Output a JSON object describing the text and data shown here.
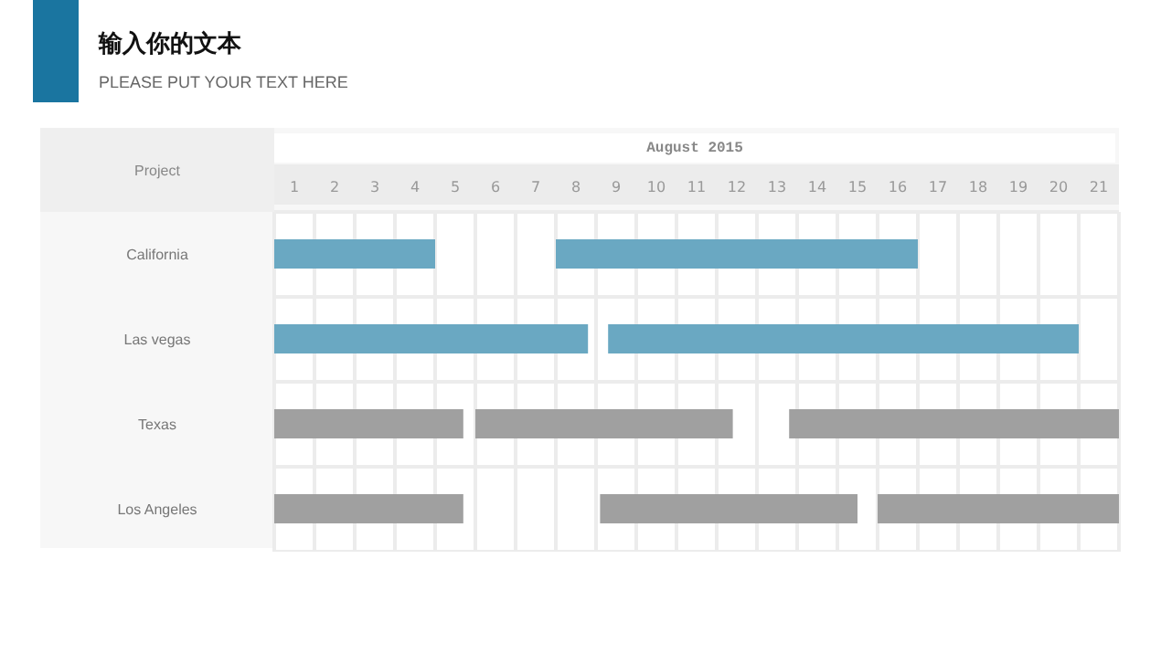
{
  "chart_data": {
    "type": "bar",
    "orientation": "horizontal",
    "title": "输入你的文本",
    "subtitle": "PLEASE PUT YOUR TEXT HERE",
    "xlabel": "August 2015",
    "ylabel": "Project",
    "categories": [
      "California",
      "Las vegas",
      "Texas",
      "Los Angeles"
    ],
    "series": [
      {
        "colors": [
          "#6aa8c2",
          "#6aa8c2",
          "#a0a0a0",
          "#a0a0a0"
        ],
        "base": [
          0,
          0,
          0,
          0
        ],
        "values": [
          4,
          7.8,
          4.7,
          4.7
        ]
      },
      {
        "colors": [
          "#6aa8c2",
          "#6aa8c2",
          "#a0a0a0",
          "#a0a0a0"
        ],
        "base": [
          7,
          8.3,
          5,
          8.1
        ],
        "values": [
          9,
          11.7,
          6.4,
          6.4
        ]
      },
      {
        "colors": [
          "#6aa8c2",
          "#6aa8c2",
          "#a0a0a0",
          "#a0a0a0"
        ],
        "base": [
          null,
          null,
          12.8,
          15
        ],
        "values": [
          null,
          null,
          8.2,
          6
        ]
      }
    ],
    "xlim": [
      0,
      21
    ],
    "xticks": [
      {
        "value": 0.5,
        "label": "1"
      },
      {
        "value": 1.5,
        "label": "2"
      },
      {
        "value": 2.5,
        "label": "3"
      },
      {
        "value": 3.5,
        "label": "4"
      },
      {
        "value": 4.5,
        "label": "5"
      },
      {
        "value": 5.5,
        "label": "6"
      },
      {
        "value": 6.5,
        "label": "7"
      },
      {
        "value": 7.5,
        "label": "8"
      },
      {
        "value": 8.5,
        "label": "9"
      },
      {
        "value": 9.5,
        "label": "10"
      },
      {
        "value": 10.5,
        "label": "11"
      },
      {
        "value": 11.5,
        "label": "12"
      },
      {
        "value": 12.5,
        "label": "13"
      },
      {
        "value": 13.5,
        "label": "14"
      },
      {
        "value": 14.5,
        "label": "15"
      },
      {
        "value": 15.5,
        "label": "16"
      },
      {
        "value": 16.5,
        "label": "17"
      },
      {
        "value": 17.5,
        "label": "18"
      },
      {
        "value": 18.5,
        "label": "19"
      },
      {
        "value": 19.5,
        "label": "20"
      },
      {
        "value": 20.5,
        "label": "21"
      }
    ],
    "grid": true,
    "legend": false
  }
}
